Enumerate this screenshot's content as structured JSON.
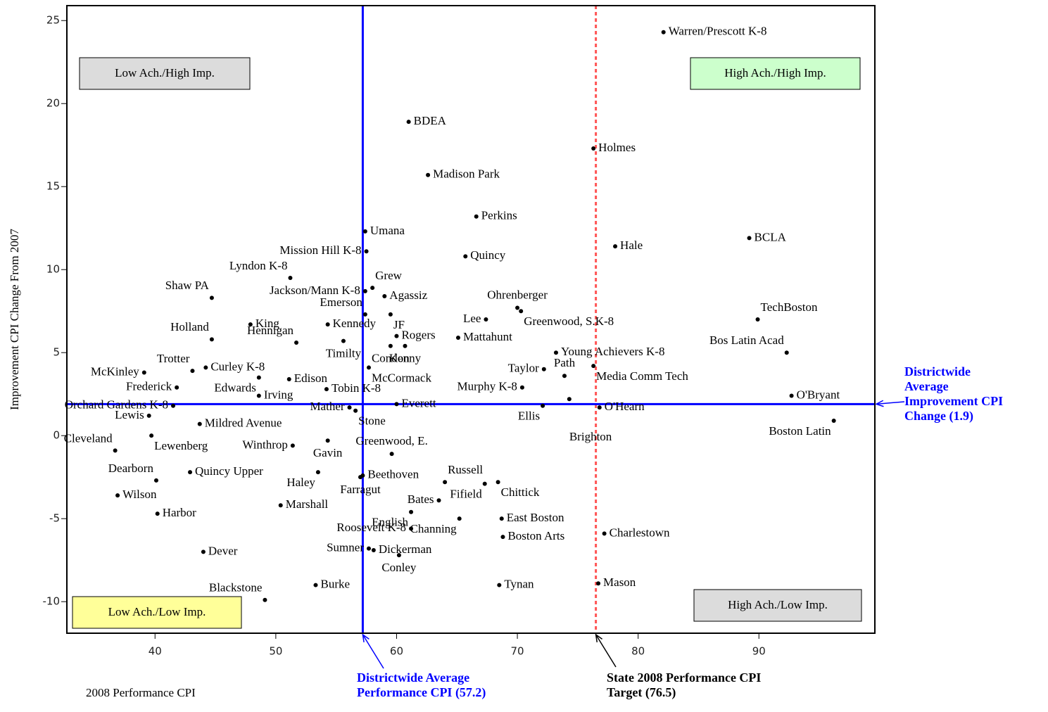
{
  "chart_data": {
    "type": "scatter",
    "x_label": "2008 Performance CPI",
    "y_label": "Improvement CPI Change From 2007",
    "xlim": [
      32.7,
      99.6
    ],
    "ylim": [
      -11.9,
      25.9
    ],
    "xticks": [
      40,
      50,
      60,
      70,
      80,
      90
    ],
    "yticks": [
      -10,
      -5,
      0,
      5,
      10,
      15,
      20,
      25
    ],
    "point_color": "#000000",
    "names": [
      "Warren/Prescott K-8",
      "BDEA",
      "Holmes",
      "Madison Park",
      "Perkins",
      "Hale",
      "BCLA",
      "Umana",
      "Mission Hill K-8",
      "Quincy",
      "Lyndon K-8",
      "Shaw PA",
      "Jackson/Mann K-8",
      "Grew",
      "Agassiz",
      "Emerson",
      "JF",
      "Ohrenberger",
      "Greenwood, S.K-8",
      "Lee",
      "TechBoston",
      "Bos Latin Acad",
      "King",
      "Holland",
      "Kennedy",
      "Rogers",
      "Condon",
      "Kenny",
      "Mattahunt",
      "Hennigan",
      "Timilty",
      "Young Achievers K-8",
      "McKinley",
      "Trotter",
      "Curley K-8",
      "Edison",
      "Edwards",
      "Irving",
      "McCormack",
      "Taylor",
      "Path",
      "Media Comm Tech",
      "Frederick",
      "Tobin K-8",
      "Murphy K-8",
      "Brighton",
      "O'Hearn",
      "Ellis",
      "O'Bryant",
      "Orchard Gardens K-8",
      "Mather",
      "Everett",
      "Stone",
      "Boston Latin",
      "Lewis",
      "Mildred Avenue",
      "Cleveland",
      "Lewenberg",
      "Winthrop",
      "Gavin",
      "Greenwood, E.",
      "Dearborn",
      "Quincy Upper",
      "Haley",
      "Beethoven",
      "Farragut",
      "Russell",
      "Fifield",
      "Chittick",
      "Channing",
      "Boston Arts",
      "East Boston",
      "Bates",
      "Marshall",
      "English",
      "Roosevelt K-8",
      "Harbor",
      "Wilson",
      "Dickerman",
      "Sumner",
      "Conley",
      "Dever",
      "Charlestown",
      "Mason",
      "Tynan",
      "Burke",
      "Blackstone"
    ],
    "x": [
      82.1,
      61.0,
      76.3,
      62.6,
      66.6,
      78.1,
      89.2,
      57.4,
      57.5,
      65.7,
      51.2,
      44.7,
      57.4,
      58.0,
      59.0,
      57.4,
      59.5,
      70.0,
      70.3,
      67.4,
      89.9,
      92.3,
      47.9,
      44.7,
      54.3,
      60.0,
      59.5,
      60.7,
      65.1,
      51.7,
      55.6,
      73.2,
      39.1,
      43.1,
      44.2,
      51.1,
      48.6,
      48.6,
      57.7,
      72.2,
      73.9,
      76.3,
      41.8,
      54.2,
      70.4,
      74.3,
      76.8,
      72.1,
      92.7,
      41.5,
      56.1,
      60.0,
      56.6,
      96.2,
      39.5,
      43.7,
      36.7,
      39.7,
      51.4,
      54.3,
      59.6,
      40.1,
      42.9,
      53.5,
      57.2,
      57.0,
      64.0,
      67.3,
      68.4,
      65.2,
      68.8,
      68.7,
      63.5,
      50.4,
      61.2,
      61.2,
      40.2,
      36.9,
      58.1,
      57.7,
      60.2,
      44.0,
      77.2,
      76.7,
      68.5,
      53.3,
      49.1
    ],
    "y": [
      24.3,
      18.9,
      17.3,
      15.7,
      13.2,
      11.4,
      11.9,
      12.3,
      11.1,
      10.8,
      9.5,
      8.3,
      8.7,
      8.9,
      8.4,
      7.3,
      7.3,
      7.7,
      7.5,
      7.0,
      7.0,
      5.0,
      6.7,
      5.8,
      6.7,
      6.0,
      5.4,
      5.4,
      5.9,
      5.6,
      5.7,
      5.0,
      3.8,
      3.9,
      4.1,
      3.4,
      3.5,
      2.4,
      4.1,
      4.0,
      3.6,
      4.2,
      2.9,
      2.8,
      2.9,
      2.2,
      1.7,
      1.8,
      2.4,
      1.8,
      1.7,
      1.9,
      1.5,
      0.9,
      1.2,
      0.7,
      -0.9,
      0.0,
      -0.6,
      -0.3,
      -1.1,
      -2.7,
      -2.2,
      -2.2,
      -2.4,
      -2.5,
      -2.8,
      -2.9,
      -2.8,
      -5.0,
      -6.1,
      -5.0,
      -3.9,
      -4.2,
      -4.6,
      -5.6,
      -4.7,
      -3.6,
      -6.9,
      -6.8,
      -7.2,
      -7.0,
      -5.9,
      -8.9,
      -9.0,
      -9.0,
      -9.9
    ],
    "reference_lines": [
      {
        "axis": "x",
        "value": 57.2,
        "color": "#0000ff",
        "dashed": false,
        "label": "Districtwide Average Performance CPI (57.2)"
      },
      {
        "axis": "x",
        "value": 76.5,
        "color": "#ff5555",
        "dashed": true,
        "label": "State 2008 Performance CPI Target (76.5)"
      },
      {
        "axis": "y",
        "value": 1.9,
        "color": "#0000ff",
        "dashed": false,
        "label": "Districtwide Average Improvement CPI Change (1.9)"
      }
    ],
    "quadrant_labels": [
      {
        "text": "Low Ach./High Imp.",
        "color": "#dcdcdc"
      },
      {
        "text": "High Ach./High Imp.",
        "color": "#ccffcc"
      },
      {
        "text": "Low Ach./Low Imp.",
        "color": "#ffff99"
      },
      {
        "text": "High Ach./Low Imp.",
        "color": "#dcdcdc"
      }
    ]
  }
}
